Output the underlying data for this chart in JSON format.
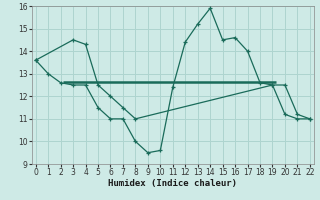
{
  "bg_color": "#ceeae6",
  "grid_color": "#aed4cf",
  "line_color": "#1a6b5a",
  "curve1_x": [
    0,
    1,
    2,
    3,
    4,
    5,
    6,
    7,
    8,
    9,
    10,
    11,
    12,
    13,
    14,
    15,
    16,
    17,
    18,
    19,
    20,
    21,
    22
  ],
  "curve1_y": [
    13.6,
    13.0,
    12.6,
    12.5,
    12.5,
    11.5,
    11.0,
    11.0,
    10.0,
    9.5,
    9.6,
    12.4,
    14.4,
    15.2,
    15.9,
    14.5,
    14.6,
    14.0,
    12.6,
    12.5,
    11.2,
    11.0,
    11.0
  ],
  "curve2_x": [
    0,
    3,
    4,
    5,
    6,
    7,
    8,
    19,
    20,
    21,
    22
  ],
  "curve2_y": [
    13.6,
    14.5,
    14.3,
    12.5,
    12.0,
    11.5,
    11.0,
    12.5,
    12.5,
    11.2,
    11.0
  ],
  "hline_y": 12.65,
  "hline_x_start": 2.2,
  "hline_x_end": 19.3,
  "xlim": [
    -0.3,
    22.3
  ],
  "ylim": [
    9,
    16
  ],
  "xlabel": "Humidex (Indice chaleur)",
  "xticks": [
    0,
    1,
    2,
    3,
    4,
    5,
    6,
    7,
    8,
    9,
    10,
    11,
    12,
    13,
    14,
    15,
    16,
    17,
    18,
    19,
    20,
    21,
    22
  ],
  "yticks": [
    9,
    10,
    11,
    12,
    13,
    14,
    15,
    16
  ],
  "label_fontsize": 6.5,
  "tick_fontsize": 5.5
}
